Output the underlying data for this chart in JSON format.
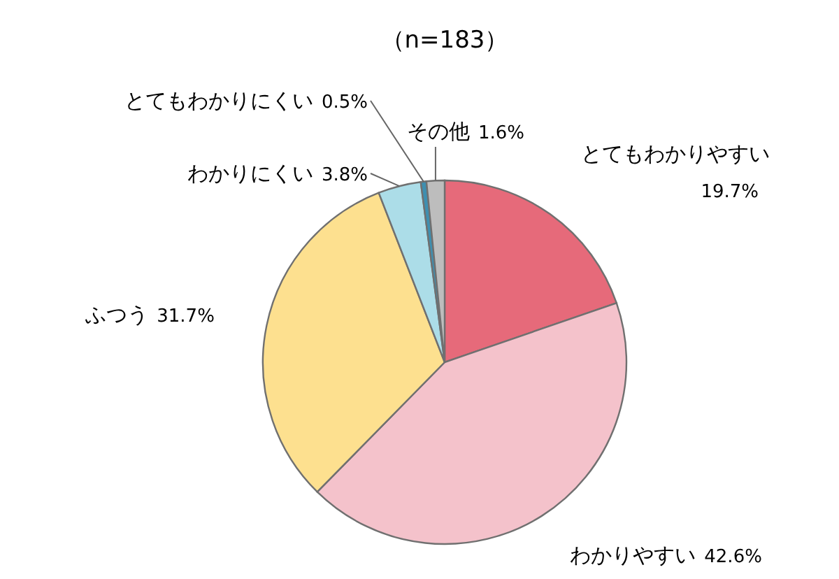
{
  "chart_data": {
    "type": "pie",
    "title": "（n=183）",
    "categories": [
      "とてもわかりやすい",
      "わかりやすい",
      "ふつう",
      "わかりにくい",
      "とてもわかりにくい",
      "その他"
    ],
    "values": [
      19.7,
      42.6,
      31.7,
      3.8,
      0.5,
      1.6
    ],
    "value_labels": [
      "19.7%",
      "42.6%",
      "31.7%",
      "3.8%",
      "0.5%",
      "1.6%"
    ],
    "colors": [
      "#e66a7a",
      "#f4c2cb",
      "#fde08f",
      "#acdde8",
      "#3e8fb0",
      "#bdbdbd"
    ]
  }
}
